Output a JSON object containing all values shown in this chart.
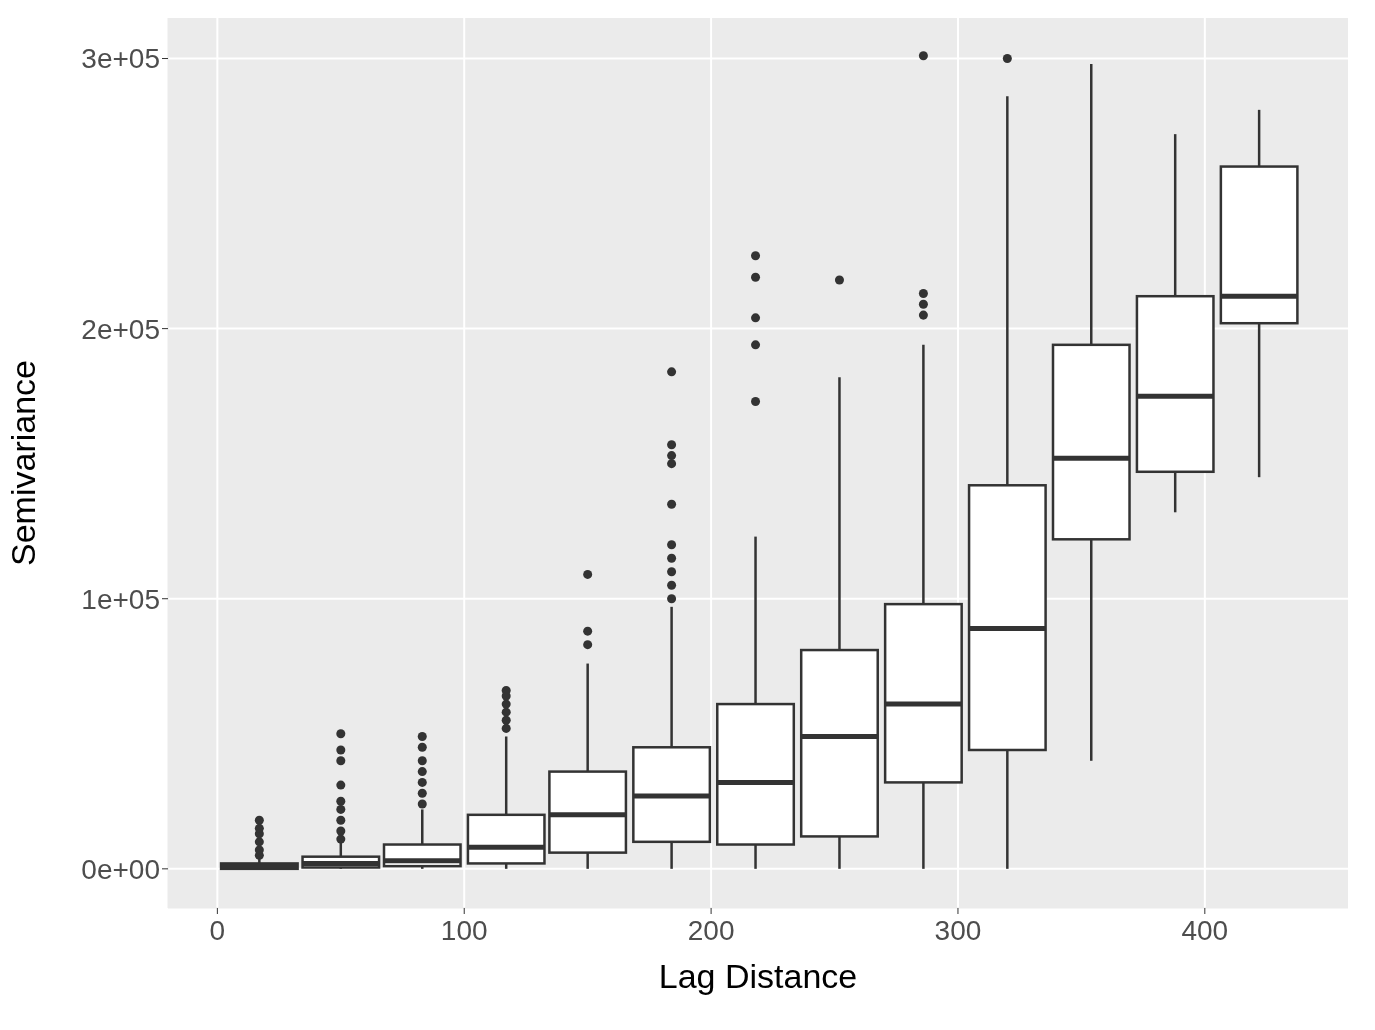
{
  "chart_data": {
    "type": "box",
    "xlabel": "Lag Distance",
    "ylabel": "Semivariance",
    "color": "#333333",
    "marker": "circle",
    "grid": true,
    "x": [
      17,
      50,
      83,
      117,
      150,
      184,
      218,
      252,
      286,
      320,
      354,
      388,
      422
    ],
    "xlim": [
      -20,
      458
    ],
    "xticks": [
      0,
      100,
      200,
      300,
      400
    ],
    "ylim": [
      -14500,
      315000
    ],
    "yticks": [
      {
        "value": 0,
        "label": "0e+00"
      },
      {
        "value": 100000,
        "label": "1e+05"
      },
      {
        "value": 200000,
        "label": "2e+05"
      },
      {
        "value": 300000,
        "label": "3e+05"
      }
    ],
    "boxes": [
      {
        "low": 0,
        "q1": 0,
        "median": 1000,
        "q3": 2000,
        "high": 4000,
        "outliers": [
          5000,
          7000,
          10000,
          13000,
          15000,
          18000
        ]
      },
      {
        "low": 0,
        "q1": 500,
        "median": 2000,
        "q3": 4500,
        "high": 10000,
        "outliers": [
          11000,
          14000,
          18000,
          22000,
          25000,
          31000,
          40000,
          44000,
          50000
        ]
      },
      {
        "low": 0,
        "q1": 1000,
        "median": 3000,
        "q3": 9000,
        "high": 22000,
        "outliers": [
          24000,
          28000,
          32000,
          36000,
          40000,
          45000,
          49000
        ]
      },
      {
        "low": 0,
        "q1": 2000,
        "median": 8000,
        "q3": 20000,
        "high": 49000,
        "outliers": [
          52000,
          55000,
          58000,
          61000,
          64000,
          66000
        ]
      },
      {
        "low": 0,
        "q1": 6000,
        "median": 20000,
        "q3": 36000,
        "high": 76000,
        "outliers": [
          83000,
          88000,
          109000
        ]
      },
      {
        "low": 0,
        "q1": 10000,
        "median": 27000,
        "q3": 45000,
        "high": 97000,
        "outliers": [
          100000,
          105000,
          110000,
          115000,
          120000,
          135000,
          150000,
          153000,
          157000,
          184000
        ]
      },
      {
        "low": 0,
        "q1": 9000,
        "median": 32000,
        "q3": 61000,
        "high": 123000,
        "outliers": [
          173000,
          194000,
          204000,
          219000,
          227000
        ]
      },
      {
        "low": 0,
        "q1": 12000,
        "median": 49000,
        "q3": 81000,
        "high": 182000,
        "outliers": [
          218000
        ]
      },
      {
        "low": 0,
        "q1": 32000,
        "median": 61000,
        "q3": 98000,
        "high": 194000,
        "outliers": [
          205000,
          209000,
          213000,
          301000
        ]
      },
      {
        "low": 0,
        "q1": 44000,
        "median": 89000,
        "q3": 142000,
        "high": 286000,
        "outliers": [
          300000
        ]
      },
      {
        "low": 40000,
        "q1": 122000,
        "median": 152000,
        "q3": 194000,
        "high": 298000
      },
      {
        "low": 132000,
        "q1": 147000,
        "median": 175000,
        "q3": 212000,
        "high": 272000
      },
      {
        "low": 145000,
        "q1": 202000,
        "median": 212000,
        "q3": 260000,
        "high": 281000
      }
    ]
  }
}
